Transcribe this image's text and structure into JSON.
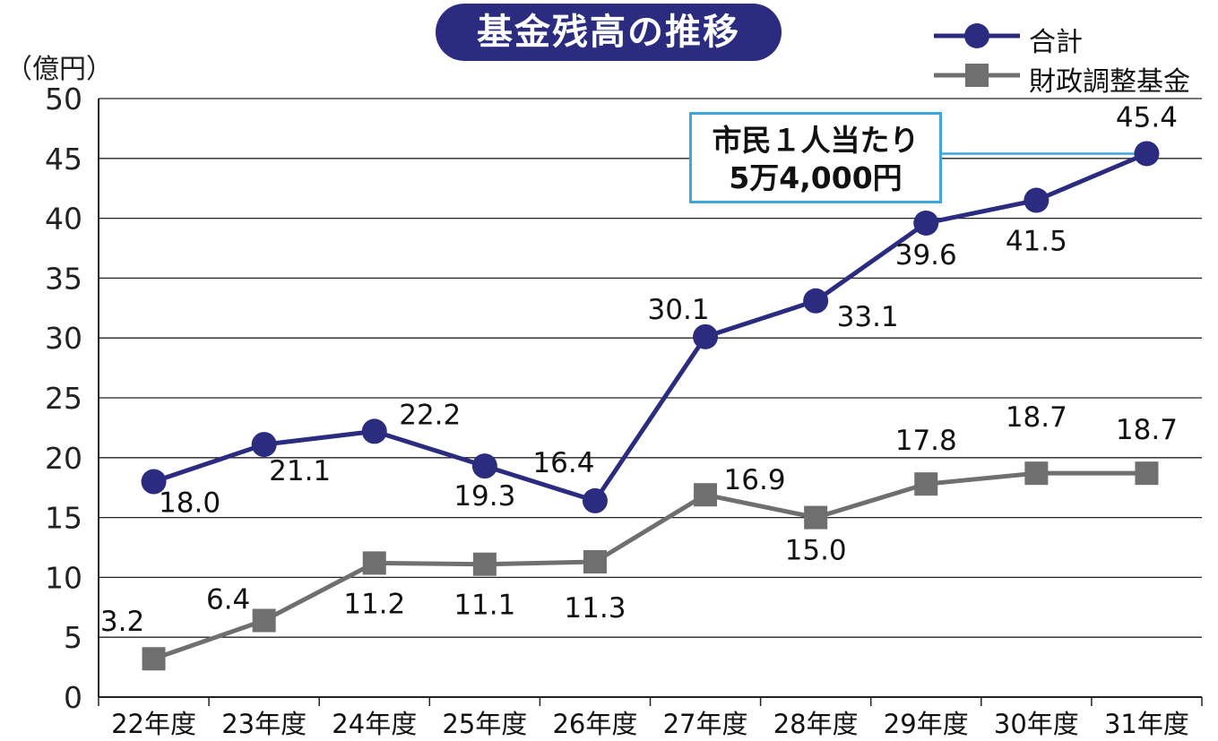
{
  "title": "基金残高の推移",
  "unit_label": "（億円）",
  "callout": {
    "line1": "市民１人当たり",
    "line2": "5万4,000円"
  },
  "chart_data": {
    "type": "line",
    "categories": [
      "22年度",
      "23年度",
      "24年度",
      "25年度",
      "26年度",
      "27年度",
      "28年度",
      "29年度",
      "30年度",
      "31年度"
    ],
    "ylim": [
      0,
      50
    ],
    "yticks": [
      0,
      5,
      10,
      15,
      20,
      25,
      30,
      35,
      40,
      45,
      50
    ],
    "grid": true,
    "legend_position": "top-right",
    "series": [
      {
        "name": "合計",
        "marker": "circle",
        "color": "#2b2b7f",
        "values": [
          18.0,
          21.1,
          22.2,
          19.3,
          16.4,
          30.1,
          33.1,
          39.6,
          41.5,
          45.4
        ],
        "labels": [
          "18.0",
          "21.1",
          "22.2",
          "19.3",
          "16.4",
          "30.1",
          "33.1",
          "39.6",
          "41.5",
          "45.4"
        ]
      },
      {
        "name": "財政調整基金",
        "marker": "square",
        "color": "#6f6f6f",
        "values": [
          3.2,
          6.4,
          11.2,
          11.1,
          11.3,
          16.9,
          15.0,
          17.8,
          18.7,
          18.7
        ],
        "labels": [
          "3.2",
          "6.4",
          "11.2",
          "11.1",
          "11.3",
          "16.9",
          "15.0",
          "17.8",
          "18.7",
          "18.7"
        ]
      }
    ]
  }
}
